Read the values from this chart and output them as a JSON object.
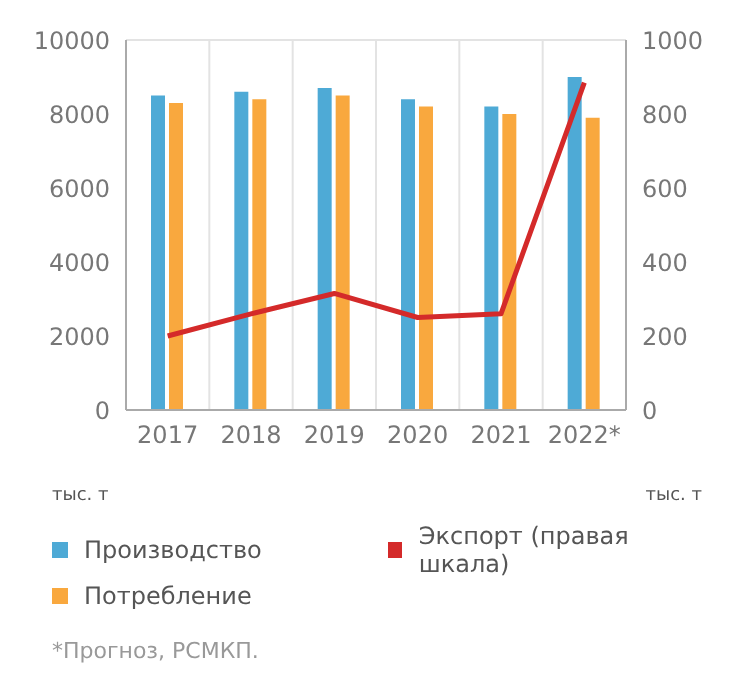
{
  "chart_data": {
    "type": "bar",
    "categories": [
      "2017",
      "2018",
      "2019",
      "2020",
      "2021",
      "2022*"
    ],
    "series": [
      {
        "name": "Производство",
        "color": "#4eaad6",
        "values": [
          8500,
          8600,
          8700,
          8400,
          8200,
          9000
        ]
      },
      {
        "name": "Потребление",
        "color": "#f9a83e",
        "values": [
          8300,
          8400,
          8500,
          8200,
          8000,
          7900
        ]
      },
      {
        "name": "Экспорт (правая шкала)",
        "type": "line",
        "axis": "y2",
        "color": "#d42a2a",
        "values": [
          200,
          260,
          315,
          250,
          260,
          885
        ]
      }
    ],
    "ylabel": "тыс. т",
    "y2label": "тыс. т",
    "ylim": [
      0,
      10000
    ],
    "yticks": [
      0,
      2000,
      4000,
      6000,
      8000,
      10000
    ],
    "y2lim": [
      0,
      1000
    ],
    "y2ticks": [
      0,
      200,
      400,
      600,
      800,
      1000
    ],
    "grid": true,
    "legend": "bottom",
    "marker": "none",
    "annotations": [
      "*Прогноз, РСМКП."
    ]
  }
}
